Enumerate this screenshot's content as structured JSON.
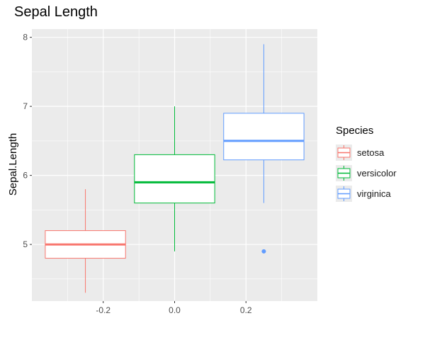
{
  "chart_data": {
    "type": "boxplot",
    "title": "Sepal Length",
    "xlabel": "",
    "ylabel": "Sepal.Length",
    "xlim": [
      -0.4,
      0.4
    ],
    "ylim": [
      4.18,
      8.12
    ],
    "x_ticks": [
      -0.2,
      0.0,
      0.2
    ],
    "x_tick_labels": [
      "-0.2",
      "0.0",
      "0.2"
    ],
    "y_ticks": [
      5,
      6,
      7,
      8
    ],
    "y_tick_labels": [
      "5",
      "6",
      "7",
      "8"
    ],
    "grid": true,
    "background": "#ebebeb",
    "legend": {
      "title": "Species",
      "position": "right"
    },
    "series": [
      {
        "name": "setosa",
        "color": "#F8766D",
        "x": -0.25,
        "width": 0.225,
        "min": 4.3,
        "q1": 4.8,
        "median": 5.0,
        "q3": 5.2,
        "max": 5.8,
        "outliers": []
      },
      {
        "name": "versicolor",
        "color": "#00BA38",
        "x": 0.0,
        "width": 0.225,
        "min": 4.9,
        "q1": 5.6,
        "median": 5.9,
        "q3": 6.3,
        "max": 7.0,
        "outliers": []
      },
      {
        "name": "virginica",
        "color": "#619CFF",
        "x": 0.25,
        "width": 0.225,
        "min": 5.6,
        "q1": 6.225,
        "median": 6.5,
        "q3": 6.9,
        "max": 7.9,
        "outliers": [
          4.9
        ]
      }
    ]
  }
}
